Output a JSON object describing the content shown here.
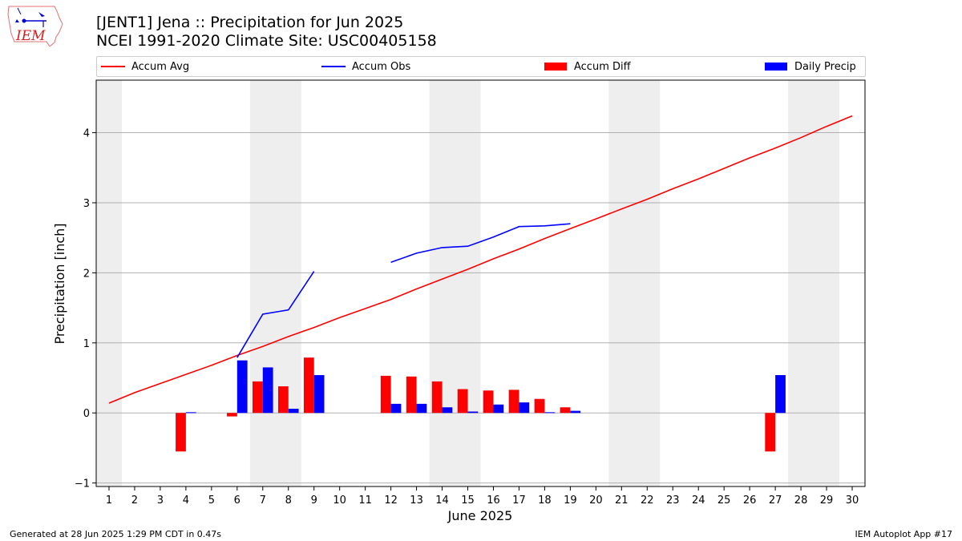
{
  "logo": {
    "text": "IEM"
  },
  "header": {
    "title_line1": "[JENT1] Jena :: Precipitation for Jun 2025",
    "title_line2": "NCEI 1991-2020 Climate Site: USC00405158"
  },
  "footer": {
    "left": "Generated at 28 Jun 2025 1:29 PM CDT in 0.47s",
    "right": "IEM Autoplot App #17"
  },
  "colors": {
    "avg": "#ff0000",
    "obs": "#0000ff",
    "diff": "#ff0000",
    "daily": "#0000ff",
    "weekend_band": "#eeeeee",
    "grid": "#b0b0b0"
  },
  "chart_data": {
    "type": "bar",
    "xlabel": "June 2025",
    "ylabel": "Precipitation [inch]",
    "xlim": [
      0.5,
      30.5
    ],
    "ylim": [
      -1.05,
      4.75
    ],
    "yticks": [
      -1,
      0,
      1,
      2,
      3,
      4
    ],
    "grid": true,
    "legend_position": "top",
    "days": [
      1,
      2,
      3,
      4,
      5,
      6,
      7,
      8,
      9,
      10,
      11,
      12,
      13,
      14,
      15,
      16,
      17,
      18,
      19,
      20,
      21,
      22,
      23,
      24,
      25,
      26,
      27,
      28,
      29,
      30
    ],
    "weekend_bands": [
      [
        0.5,
        1.5
      ],
      [
        6.5,
        8.5
      ],
      [
        13.5,
        15.5
      ],
      [
        20.5,
        22.5
      ],
      [
        27.5,
        29.5
      ]
    ],
    "series": [
      {
        "name": "Accum Avg",
        "kind": "line",
        "color": "#ff0000",
        "values": [
          0.14,
          0.29,
          0.42,
          0.55,
          0.68,
          0.82,
          0.95,
          1.09,
          1.22,
          1.36,
          1.49,
          1.62,
          1.77,
          1.91,
          2.05,
          2.2,
          2.34,
          2.49,
          2.63,
          2.77,
          2.91,
          3.05,
          3.2,
          3.34,
          3.49,
          3.64,
          3.78,
          3.93,
          4.09,
          4.24
        ]
      },
      {
        "name": "Accum Obs",
        "kind": "line",
        "color": "#0000ff",
        "values": [
          null,
          null,
          null,
          null,
          null,
          0.79,
          1.41,
          1.47,
          2.02,
          null,
          null,
          2.15,
          2.28,
          2.36,
          2.38,
          2.51,
          2.66,
          2.67,
          2.7,
          null,
          null,
          null,
          null,
          null,
          null,
          null,
          null,
          null,
          null,
          null
        ]
      },
      {
        "name": "Accum Diff",
        "kind": "bar",
        "color": "#ff0000",
        "values": [
          null,
          null,
          null,
          -0.55,
          null,
          -0.05,
          0.45,
          0.38,
          0.79,
          null,
          null,
          0.53,
          0.52,
          0.45,
          0.34,
          0.32,
          0.33,
          0.2,
          0.08,
          null,
          null,
          null,
          null,
          null,
          null,
          null,
          -0.55,
          null,
          null,
          null
        ]
      },
      {
        "name": "Daily Precip",
        "kind": "bar",
        "color": "#0000ff",
        "values": [
          null,
          null,
          null,
          0.01,
          null,
          0.75,
          0.65,
          0.06,
          0.54,
          null,
          null,
          0.13,
          0.13,
          0.08,
          0.02,
          0.12,
          0.15,
          0.01,
          0.03,
          null,
          null,
          null,
          null,
          null,
          null,
          null,
          0.54,
          null,
          null,
          null
        ]
      }
    ]
  }
}
